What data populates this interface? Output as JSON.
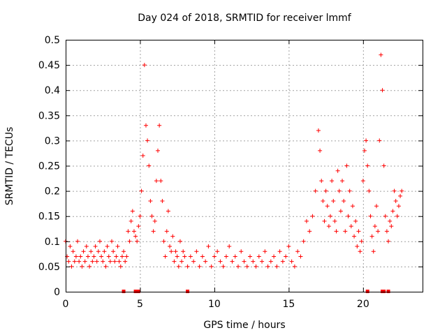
{
  "chart_data": {
    "type": "scatter",
    "title": "Day 024 of 2018, SRMTID for receiver lmmf",
    "xlabel": "GPS time / hours",
    "ylabel": "SRMTID / TECUs",
    "xlim": [
      0,
      24
    ],
    "ylim": [
      0,
      0.5
    ],
    "x_ticks": [
      0,
      5,
      10,
      15,
      20
    ],
    "y_ticks": [
      0,
      0.05,
      0.1,
      0.15,
      0.2,
      0.25,
      0.3,
      0.35,
      0.4,
      0.45,
      0.5
    ],
    "x_tick_labels": [
      "0",
      "5",
      "10",
      "15",
      "20"
    ],
    "y_tick_labels": [
      "0",
      "0.05",
      "0.1",
      "0.15",
      "0.2",
      "0.25",
      "0.3",
      "0.35",
      "0.4",
      "0.45",
      "0.5"
    ],
    "grid": true,
    "marker": "+",
    "color": "#ff0000",
    "series": [
      {
        "name": "SRMTID",
        "x": [
          0.0,
          0.1,
          0.2,
          0.3,
          0.4,
          0.5,
          0.6,
          0.7,
          0.8,
          0.9,
          1.0,
          1.1,
          1.2,
          1.3,
          1.4,
          1.5,
          1.6,
          1.7,
          1.8,
          1.9,
          2.0,
          2.1,
          2.2,
          2.3,
          2.4,
          2.5,
          2.6,
          2.7,
          2.8,
          2.9,
          3.0,
          3.1,
          3.2,
          3.3,
          3.4,
          3.5,
          3.6,
          3.7,
          3.8,
          3.9,
          4.0,
          4.1,
          4.2,
          4.3,
          4.4,
          4.5,
          4.6,
          4.7,
          4.8,
          4.9,
          5.0,
          5.1,
          5.2,
          5.3,
          5.4,
          5.5,
          5.6,
          5.7,
          5.8,
          5.9,
          6.0,
          6.1,
          6.2,
          6.3,
          6.4,
          6.5,
          6.6,
          6.7,
          6.8,
          6.9,
          7.0,
          7.1,
          7.2,
          7.3,
          7.4,
          7.5,
          7.6,
          7.7,
          7.8,
          7.9,
          8.0,
          8.2,
          8.4,
          8.6,
          8.8,
          9.0,
          9.2,
          9.4,
          9.6,
          9.8,
          10.0,
          10.2,
          10.4,
          10.6,
          10.8,
          11.0,
          11.2,
          11.4,
          11.6,
          11.8,
          12.0,
          12.2,
          12.4,
          12.6,
          12.8,
          13.0,
          13.2,
          13.4,
          13.6,
          13.8,
          14.0,
          14.2,
          14.4,
          14.6,
          14.8,
          15.0,
          15.2,
          15.4,
          15.6,
          15.8,
          16.0,
          16.2,
          16.4,
          16.6,
          16.8,
          17.0,
          17.1,
          17.2,
          17.3,
          17.4,
          17.5,
          17.6,
          17.7,
          17.8,
          17.9,
          18.0,
          18.1,
          18.2,
          18.3,
          18.4,
          18.5,
          18.6,
          18.7,
          18.8,
          18.9,
          19.0,
          19.1,
          19.2,
          19.3,
          19.4,
          19.5,
          19.6,
          19.7,
          19.8,
          19.9,
          20.0,
          20.1,
          20.2,
          20.3,
          20.4,
          20.5,
          20.6,
          20.7,
          20.8,
          20.9,
          21.0,
          21.1,
          21.2,
          21.3,
          21.4,
          21.5,
          21.6,
          21.7,
          21.8,
          21.9,
          22.0,
          22.1,
          22.2,
          22.3,
          22.4,
          22.5,
          22.6
        ],
        "y": [
          0.1,
          0.07,
          0.06,
          0.09,
          0.05,
          0.08,
          0.06,
          0.07,
          0.1,
          0.06,
          0.07,
          0.05,
          0.08,
          0.06,
          0.09,
          0.07,
          0.05,
          0.08,
          0.06,
          0.07,
          0.09,
          0.06,
          0.08,
          0.1,
          0.07,
          0.06,
          0.08,
          0.05,
          0.09,
          0.07,
          0.06,
          0.1,
          0.08,
          0.06,
          0.07,
          0.09,
          0.06,
          0.05,
          0.07,
          0.08,
          0.06,
          0.07,
          0.12,
          0.1,
          0.14,
          0.16,
          0.12,
          0.11,
          0.1,
          0.13,
          0.15,
          0.2,
          0.27,
          0.45,
          0.33,
          0.3,
          0.25,
          0.18,
          0.15,
          0.12,
          0.14,
          0.22,
          0.28,
          0.33,
          0.22,
          0.18,
          0.1,
          0.07,
          0.12,
          0.16,
          0.09,
          0.08,
          0.11,
          0.06,
          0.08,
          0.07,
          0.05,
          0.1,
          0.06,
          0.08,
          0.07,
          0.05,
          0.07,
          0.06,
          0.08,
          0.05,
          0.07,
          0.06,
          0.09,
          0.05,
          0.07,
          0.08,
          0.06,
          0.05,
          0.07,
          0.09,
          0.06,
          0.07,
          0.05,
          0.08,
          0.06,
          0.05,
          0.07,
          0.06,
          0.05,
          0.07,
          0.06,
          0.08,
          0.05,
          0.06,
          0.07,
          0.05,
          0.08,
          0.06,
          0.07,
          0.09,
          0.06,
          0.05,
          0.08,
          0.07,
          0.1,
          0.14,
          0.12,
          0.15,
          0.2,
          0.32,
          0.28,
          0.22,
          0.18,
          0.14,
          0.2,
          0.17,
          0.13,
          0.15,
          0.22,
          0.18,
          0.14,
          0.12,
          0.24,
          0.2,
          0.16,
          0.22,
          0.18,
          0.12,
          0.25,
          0.15,
          0.2,
          0.13,
          0.17,
          0.11,
          0.14,
          0.09,
          0.12,
          0.08,
          0.1,
          0.22,
          0.28,
          0.3,
          0.25,
          0.2,
          0.15,
          0.11,
          0.08,
          0.13,
          0.17,
          0.12,
          0.3,
          0.47,
          0.4,
          0.25,
          0.15,
          0.12,
          0.1,
          0.14,
          0.13,
          0.16,
          0.2,
          0.18,
          0.15,
          0.17,
          0.19,
          0.2
        ]
      }
    ],
    "gap_markers_x": [
      3.9,
      4.7,
      4.8,
      4.9,
      8.2,
      20.3,
      21.3,
      21.4,
      21.7
    ]
  }
}
